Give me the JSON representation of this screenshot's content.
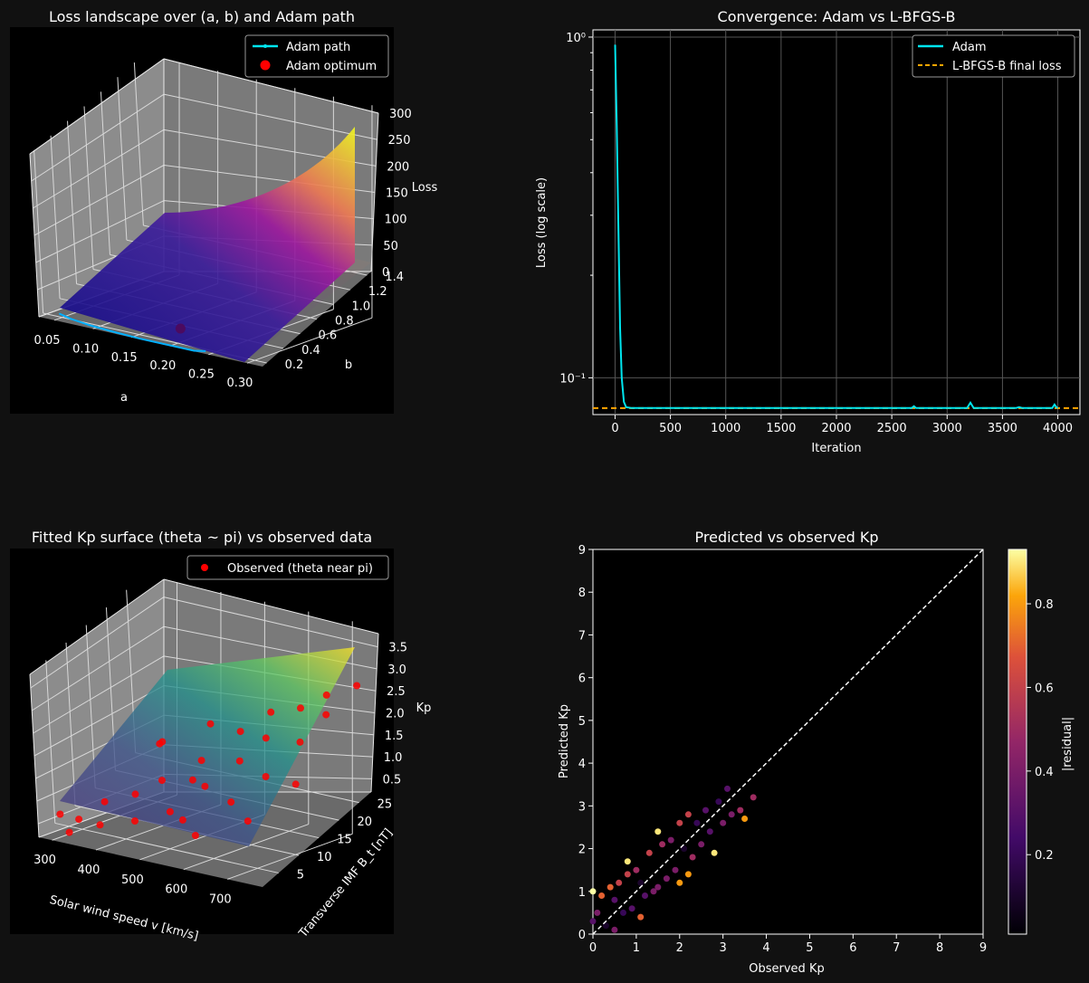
{
  "figure": {
    "background": "#111111",
    "panel_background": "#000000",
    "foreground": "#ffffff"
  },
  "chart_data": [
    {
      "id": "loss_landscape",
      "type": "surface3d",
      "title": "Loss landscape over (a, b) and Adam path",
      "xlabel": "a",
      "ylabel": "b",
      "zlabel": "Loss",
      "x_ticks": [
        "0.05",
        "0.10",
        "0.15",
        "0.20",
        "0.25",
        "0.30"
      ],
      "y_ticks": [
        "0.2",
        "0.4",
        "0.6",
        "0.8",
        "1.0",
        "1.2",
        "1.4"
      ],
      "z_ticks": [
        "0",
        "50",
        "100",
        "150",
        "200",
        "250",
        "300"
      ],
      "xlim": [
        0.03,
        0.32
      ],
      "ylim": [
        0.15,
        1.45
      ],
      "zlim": [
        0,
        300
      ],
      "colormap": "plasma",
      "legend": {
        "placement": "upper right",
        "entries": [
          "Adam path",
          "Adam optimum"
        ]
      },
      "series": [
        {
          "name": "Adam path",
          "kind": "line",
          "color": "#00e5ee",
          "points": [
            [
              0.04,
              0.28,
              0.9
            ],
            [
              0.06,
              0.24,
              0.1
            ],
            [
              0.09,
              0.2,
              0.08
            ],
            [
              0.12,
              0.18,
              0.08
            ],
            [
              0.16,
              0.16,
              0.08
            ],
            [
              0.2,
              0.16,
              0.08
            ],
            [
              0.23,
              0.16,
              0.08
            ],
            [
              0.24,
              0.2,
              0.08
            ]
          ]
        },
        {
          "name": "Adam optimum",
          "kind": "point",
          "color": "#ff0000",
          "points": [
            [
              0.17,
              0.5,
              0.08
            ]
          ]
        }
      ]
    },
    {
      "id": "convergence",
      "type": "line",
      "title": "Convergence: Adam vs L-BFGS-B",
      "xlabel": "Iteration",
      "ylabel": "Loss (log scale)",
      "yscale": "log",
      "x_ticks": [
        "0",
        "500",
        "1000",
        "1500",
        "2000",
        "2500",
        "3000",
        "3500",
        "4000"
      ],
      "y_tick_labels": [
        "10⁰",
        "10⁻¹"
      ],
      "xlim": [
        -200,
        4200
      ],
      "ylim": [
        0.078,
        1.05
      ],
      "grid": true,
      "legend": {
        "placement": "upper right",
        "entries": [
          "Adam",
          "L-BFGS-B final loss"
        ]
      },
      "series": [
        {
          "name": "Adam",
          "color": "#00e5ee",
          "x": [
            0,
            15,
            30,
            45,
            60,
            80,
            100,
            150,
            300,
            600,
            1000,
            1500,
            2000,
            2500,
            2680,
            2700,
            2720,
            2900,
            3180,
            3210,
            3240,
            3500,
            3620,
            3650,
            3680,
            3950,
            3970,
            3990,
            4000
          ],
          "y": [
            0.95,
            0.55,
            0.28,
            0.14,
            0.1,
            0.085,
            0.082,
            0.0815,
            0.0815,
            0.0815,
            0.0815,
            0.0815,
            0.0815,
            0.0815,
            0.0815,
            0.0825,
            0.0815,
            0.0815,
            0.0815,
            0.0845,
            0.0815,
            0.0815,
            0.0815,
            0.082,
            0.0815,
            0.0815,
            0.0835,
            0.0818,
            0.0815
          ]
        },
        {
          "name": "L-BFGS-B final loss",
          "color": "#ffa500",
          "style": "dashed",
          "y_constant": 0.0815
        }
      ]
    },
    {
      "id": "kp_surface",
      "type": "surface3d",
      "title": "Fitted Kp surface (theta ~ pi) vs observed data",
      "xlabel": "Solar wind speed v [km/s]",
      "ylabel": "Transverse IMF B_t [nT]",
      "zlabel": "Kp",
      "x_ticks": [
        "300",
        "400",
        "500",
        "600",
        "700"
      ],
      "y_ticks": [
        "5",
        "10",
        "15",
        "20",
        "25"
      ],
      "z_ticks": [
        "0.5",
        "1.0",
        "1.5",
        "2.0",
        "2.5",
        "3.0",
        "3.5"
      ],
      "xlim": [
        270,
        780
      ],
      "ylim": [
        1,
        28
      ],
      "zlim": [
        0.2,
        3.8
      ],
      "colormap": "viridis",
      "legend": {
        "placement": "upper right",
        "entries": [
          "Observed (theta near pi)"
        ]
      },
      "series": [
        {
          "name": "Observed (theta near pi)",
          "kind": "scatter",
          "color": "#ff0000",
          "points": [
            [
              300,
              3,
              0.7
            ],
            [
              310,
              6,
              0.5
            ],
            [
              330,
              2,
              0.4
            ],
            [
              350,
              8,
              0.9
            ],
            [
              380,
              4,
              0.6
            ],
            [
              400,
              10,
              1.1
            ],
            [
              420,
              14,
              1.3
            ],
            [
              450,
              5,
              0.8
            ],
            [
              470,
              18,
              1.7
            ],
            [
              500,
              8,
              1.0
            ],
            [
              520,
              22,
              2.3
            ],
            [
              540,
              12,
              1.5
            ],
            [
              560,
              25,
              2.7
            ],
            [
              580,
              16,
              2.0
            ],
            [
              600,
              20,
              2.4
            ],
            [
              620,
              10,
              1.4
            ],
            [
              640,
              24,
              3.0
            ],
            [
              660,
              14,
              1.9
            ],
            [
              680,
              26,
              3.3
            ],
            [
              700,
              18,
              2.6
            ],
            [
              720,
              22,
              3.1
            ],
            [
              740,
              27,
              3.6
            ],
            [
              360,
              20,
              1.8
            ],
            [
              430,
              24,
              2.2
            ],
            [
              310,
              24,
              1.5
            ],
            [
              480,
              15,
              1.4
            ],
            [
              550,
              6,
              1.0
            ],
            [
              610,
              3,
              0.9
            ],
            [
              700,
              6,
              1.3
            ],
            [
              750,
              12,
              2.0
            ]
          ]
        }
      ]
    },
    {
      "id": "pred_vs_obs",
      "type": "scatter",
      "title": "Predicted vs observed Kp",
      "xlabel": "Observed Kp",
      "ylabel": "Predicted Kp",
      "xlim": [
        0,
        9
      ],
      "ylim": [
        0,
        9
      ],
      "x_ticks": [
        "0",
        "1",
        "2",
        "3",
        "4",
        "5",
        "6",
        "7",
        "8",
        "9"
      ],
      "y_ticks": [
        "0",
        "1",
        "2",
        "3",
        "4",
        "5",
        "6",
        "7",
        "8",
        "9"
      ],
      "colormap": "inferno",
      "colorbar": {
        "label": "|residual|",
        "range": [
          0.01,
          0.93
        ],
        "ticks": [
          "0.2",
          "0.4",
          "0.6",
          "0.8"
        ]
      },
      "reference_line": {
        "style": "dashed",
        "color": "#ffffff",
        "from": [
          0,
          0
        ],
        "to": [
          9,
          9
        ]
      },
      "series": [
        {
          "name": "points",
          "points": [
            [
              0,
              1.0,
              0.93
            ],
            [
              0,
              0.3,
              0.3
            ],
            [
              0.1,
              0.5,
              0.4
            ],
            [
              0.2,
              0.9,
              0.7
            ],
            [
              0.3,
              0.2,
              0.1
            ],
            [
              0.4,
              1.1,
              0.7
            ],
            [
              0.5,
              0.8,
              0.3
            ],
            [
              0.5,
              0.1,
              0.4
            ],
            [
              0.6,
              1.2,
              0.6
            ],
            [
              0.7,
              0.5,
              0.2
            ],
            [
              0.8,
              1.4,
              0.6
            ],
            [
              0.8,
              1.7,
              0.9
            ],
            [
              0.9,
              0.6,
              0.3
            ],
            [
              1.0,
              1.5,
              0.5
            ],
            [
              1.1,
              0.4,
              0.7
            ],
            [
              1.1,
              1.2,
              0.1
            ],
            [
              1.2,
              0.9,
              0.3
            ],
            [
              1.3,
              1.9,
              0.6
            ],
            [
              1.4,
              1.0,
              0.4
            ],
            [
              1.5,
              2.4,
              0.9
            ],
            [
              1.5,
              1.1,
              0.4
            ],
            [
              1.6,
              2.1,
              0.5
            ],
            [
              1.7,
              1.3,
              0.4
            ],
            [
              1.8,
              2.2,
              0.4
            ],
            [
              1.9,
              1.5,
              0.4
            ],
            [
              2.0,
              2.6,
              0.6
            ],
            [
              2.0,
              1.2,
              0.8
            ],
            [
              2.1,
              2.0,
              0.1
            ],
            [
              2.2,
              2.8,
              0.6
            ],
            [
              2.2,
              1.4,
              0.8
            ],
            [
              2.3,
              1.8,
              0.5
            ],
            [
              2.4,
              2.6,
              0.2
            ],
            [
              2.5,
              2.1,
              0.4
            ],
            [
              2.6,
              2.9,
              0.3
            ],
            [
              2.7,
              2.4,
              0.3
            ],
            [
              2.8,
              1.9,
              0.9
            ],
            [
              2.9,
              3.1,
              0.2
            ],
            [
              3.0,
              2.6,
              0.4
            ],
            [
              3.1,
              3.4,
              0.3
            ],
            [
              3.2,
              2.8,
              0.4
            ],
            [
              3.4,
              2.9,
              0.5
            ],
            [
              3.5,
              2.7,
              0.8
            ],
            [
              3.7,
              3.2,
              0.5
            ]
          ]
        }
      ]
    }
  ]
}
